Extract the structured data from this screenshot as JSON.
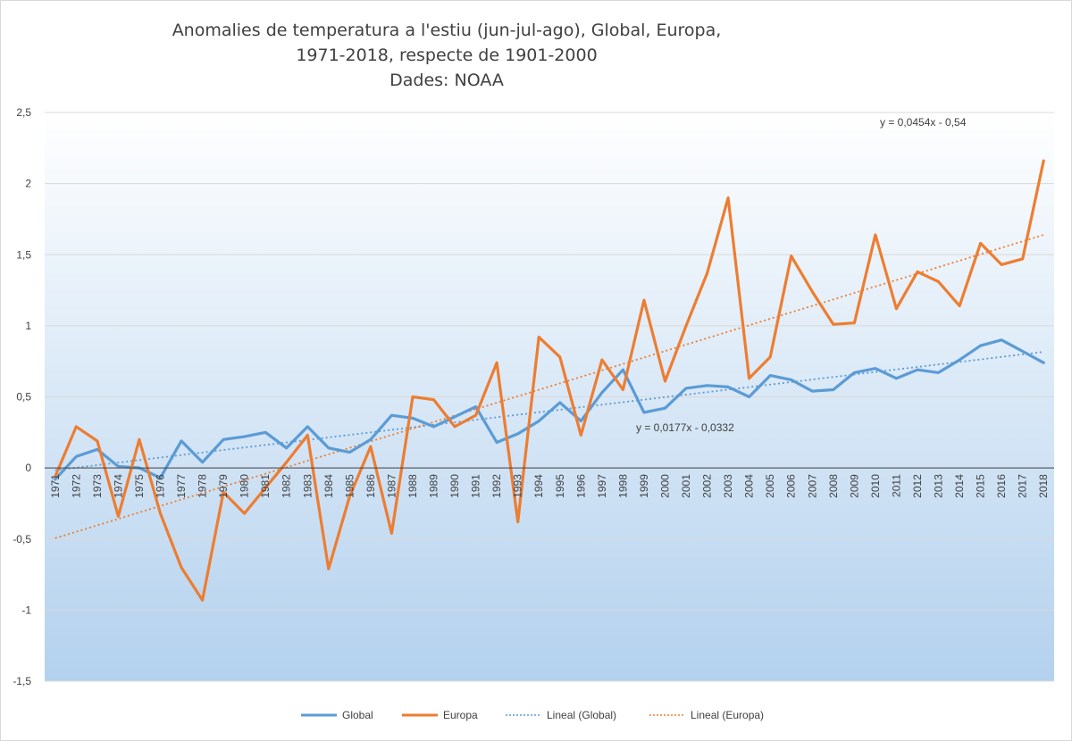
{
  "chart_data": {
    "type": "line",
    "title": [
      "Anomalies de temperatura a l'estiu (jun-jul-ago), Global, Europa,",
      "1971-2018, respecte de 1901-2000",
      "Dades: NOAA"
    ],
    "xlabel": "",
    "ylabel": "",
    "ylim": [
      -1.5,
      2.5
    ],
    "y_ticks": [
      "2,5",
      "2",
      "1,5",
      "1",
      "0,5",
      "0",
      "-0,5",
      "-1",
      "-1,5"
    ],
    "grid": true,
    "legend_position": "bottom",
    "x": [
      "1971",
      "1972",
      "1973",
      "1974",
      "1975",
      "1976",
      "1977",
      "1978",
      "1979",
      "1980",
      "1981",
      "1982",
      "1983",
      "1984",
      "1985",
      "1986",
      "1987",
      "1988",
      "1989",
      "1990",
      "1991",
      "1992",
      "1993",
      "1994",
      "1995",
      "1996",
      "1997",
      "1998",
      "1999",
      "2000",
      "2001",
      "2002",
      "2003",
      "2004",
      "2005",
      "2006",
      "2007",
      "2008",
      "2009",
      "2010",
      "2011",
      "2012",
      "2013",
      "2014",
      "2015",
      "2016",
      "2017",
      "2018"
    ],
    "series": [
      {
        "name": "Global",
        "color": "#5b9bd5",
        "style": "solid",
        "values": [
          -0.08,
          0.08,
          0.13,
          0.01,
          0.0,
          -0.07,
          0.19,
          0.04,
          0.2,
          0.22,
          0.25,
          0.14,
          0.29,
          0.14,
          0.11,
          0.2,
          0.37,
          0.35,
          0.29,
          0.36,
          0.43,
          0.18,
          0.24,
          0.33,
          0.46,
          0.33,
          0.53,
          0.69,
          0.39,
          0.42,
          0.56,
          0.58,
          0.57,
          0.5,
          0.65,
          0.62,
          0.54,
          0.55,
          0.67,
          0.7,
          0.63,
          0.69,
          0.67,
          0.76,
          0.86,
          0.9,
          0.82,
          0.74
        ]
      },
      {
        "name": "Europa",
        "color": "#ed7d31",
        "style": "solid",
        "values": [
          -0.06,
          0.29,
          0.19,
          -0.34,
          0.2,
          -0.32,
          -0.7,
          -0.93,
          -0.17,
          -0.32,
          -0.14,
          0.04,
          0.23,
          -0.71,
          -0.2,
          0.15,
          -0.46,
          0.5,
          0.48,
          0.29,
          0.37,
          0.74,
          -0.38,
          0.92,
          0.78,
          0.23,
          0.76,
          0.55,
          1.18,
          0.61,
          1.0,
          1.37,
          1.9,
          0.63,
          0.78,
          1.49,
          1.24,
          1.01,
          1.02,
          1.64,
          1.12,
          1.38,
          1.31,
          1.14,
          1.58,
          1.43,
          1.47,
          2.16
        ]
      }
    ],
    "trendlines": [
      {
        "name": "Lineal  (Global)",
        "color": "#5b9bd5",
        "style": "dotted",
        "slope": 0.0177,
        "intercept": -0.0332,
        "equation": "y = 0,0177x - 0,0332"
      },
      {
        "name": "Lineal  (Europa)",
        "color": "#ed7d31",
        "style": "dotted",
        "slope": 0.0454,
        "intercept": -0.54,
        "equation": "y = 0,0454x - 0,54"
      }
    ],
    "background_top": "#ffffff",
    "background_bottom": "#b3d1ee",
    "gridline_color": "#d9d9d9",
    "axis_color": "#404040"
  }
}
